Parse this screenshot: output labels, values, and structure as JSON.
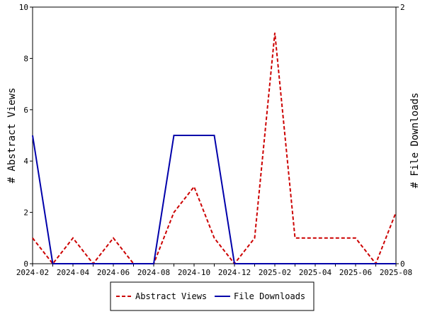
{
  "chart_data": {
    "type": "line",
    "x": [
      "2024-02",
      "2024-03",
      "2024-04",
      "2024-05",
      "2024-06",
      "2024-07",
      "2024-08",
      "2024-09",
      "2024-10",
      "2024-11",
      "2024-12",
      "2025-01",
      "2025-02",
      "2025-03",
      "2025-04",
      "2025-05",
      "2025-06",
      "2025-07",
      "2025-08"
    ],
    "x_tick_labels": [
      "2024-02",
      "2024-04",
      "2024-06",
      "2024-08",
      "2024-10",
      "2024-12",
      "2025-02",
      "2025-04",
      "2025-06",
      "2025-08"
    ],
    "ylabel": "# Abstract Views",
    "y2label": "# File Downloads",
    "ylim": [
      0,
      10
    ],
    "y2lim": [
      0,
      2
    ],
    "y_ticks": [
      "0",
      "2",
      "4",
      "6",
      "8",
      "10"
    ],
    "y2_ticks": [
      "0",
      "2"
    ],
    "grid": false,
    "legend_position": "bottom",
    "series": [
      {
        "name": "Abstract Views",
        "axis": "left",
        "color": "#cc0000",
        "style": "dashed",
        "values": [
          1,
          0,
          1,
          0,
          1,
          0,
          0,
          2,
          3,
          1,
          0,
          1,
          9,
          1,
          1,
          1,
          1,
          0,
          2
        ]
      },
      {
        "name": "File Downloads",
        "axis": "right",
        "color": "#0000aa",
        "style": "solid",
        "values": [
          1,
          0,
          0,
          0,
          0,
          0,
          0,
          1,
          1,
          1,
          0,
          0,
          0,
          0,
          0,
          0,
          0,
          0,
          0
        ]
      }
    ]
  }
}
